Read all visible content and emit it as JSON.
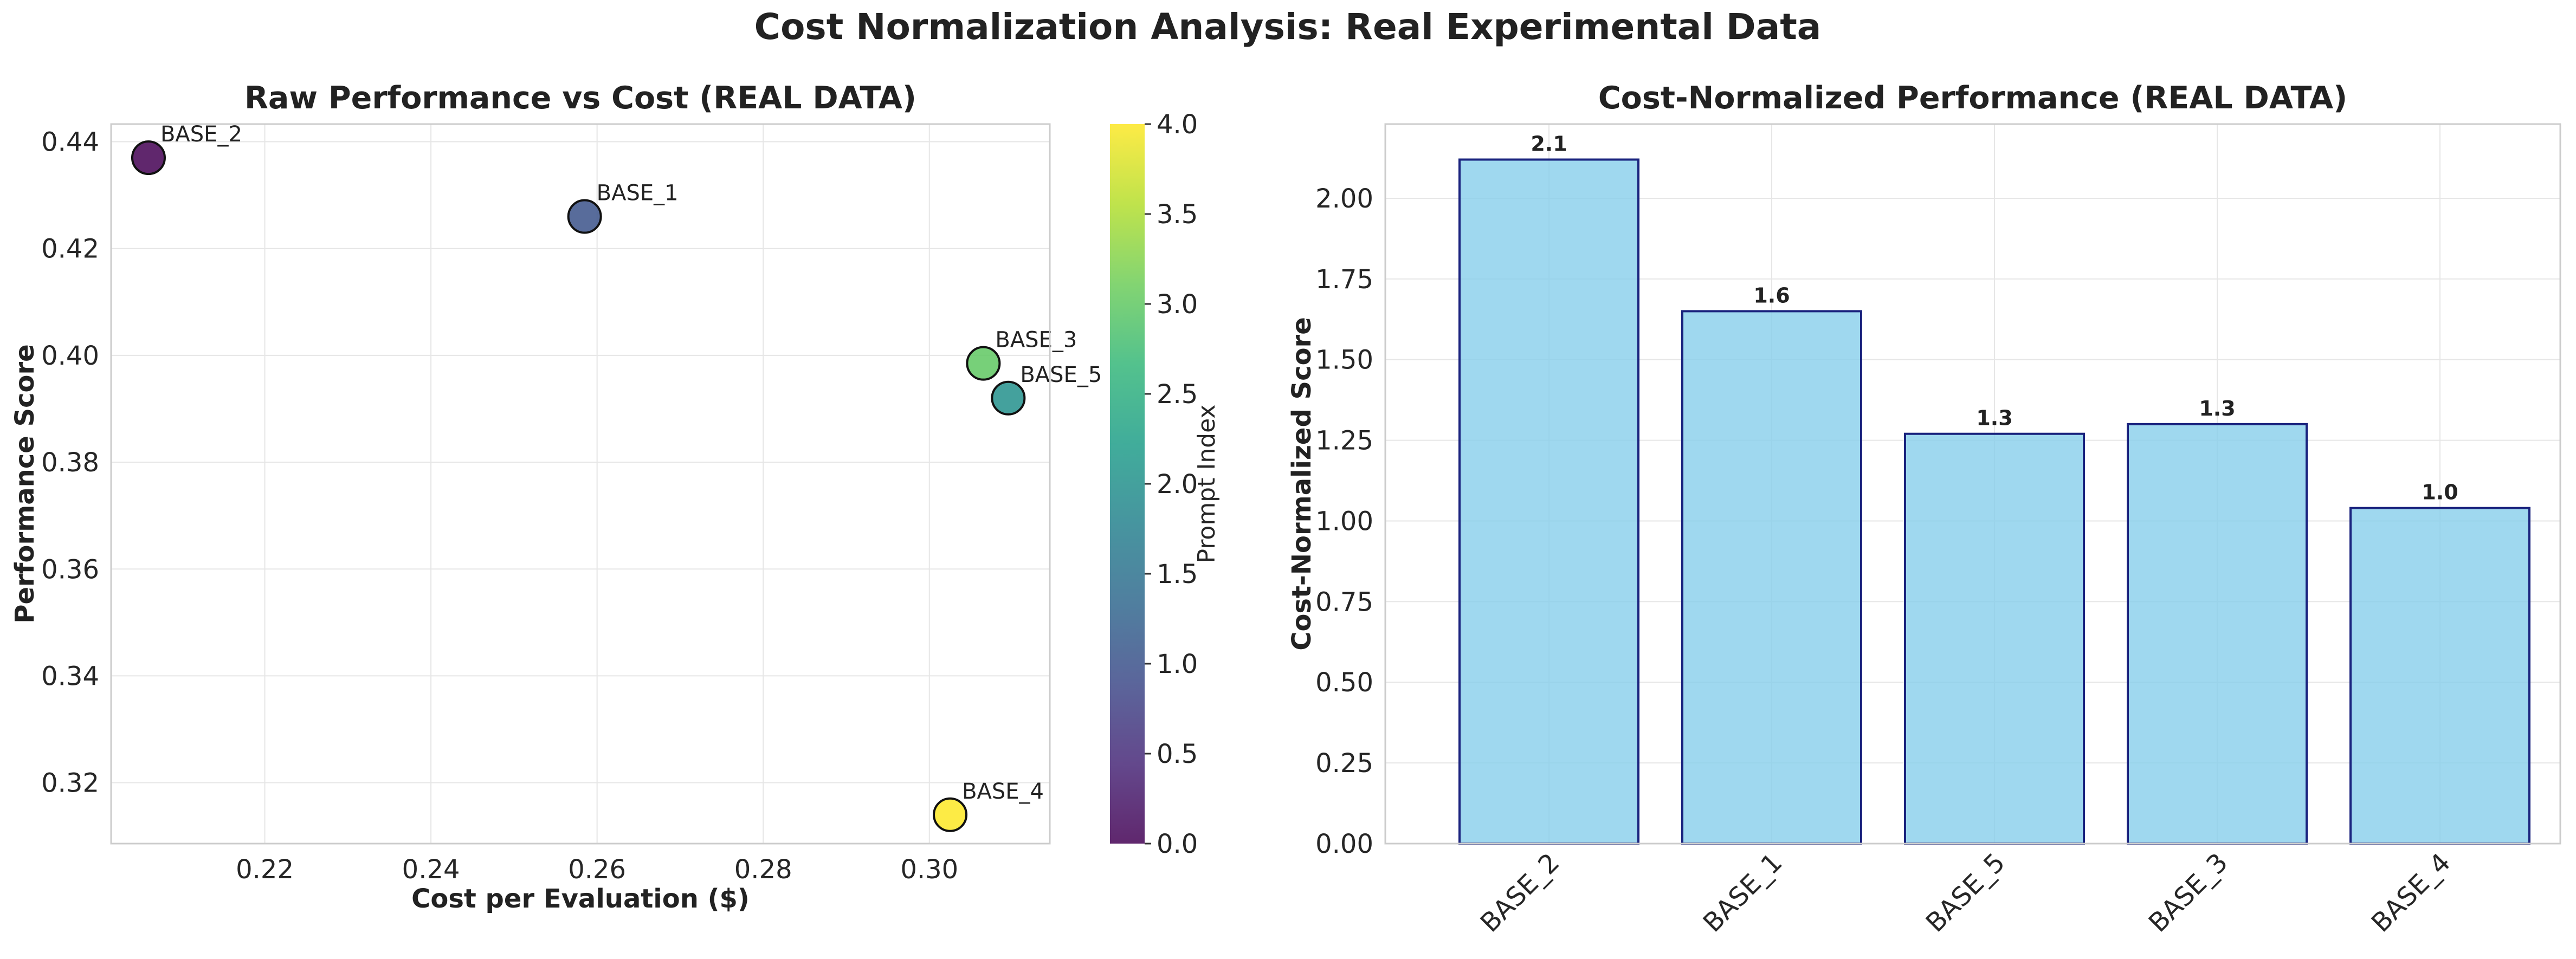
{
  "figure": {
    "suptitle": "Cost Normalization Analysis: Real Experimental Data"
  },
  "chart_data": [
    {
      "type": "scatter",
      "title": "Raw Performance vs Cost (REAL DATA)",
      "xlabel": "Cost per Evaluation ($)",
      "ylabel": "Performance Score",
      "xlim": [
        0.2015,
        0.3145
      ],
      "ylim": [
        0.3086,
        0.4433
      ],
      "xticks": [
        0.22,
        0.24,
        0.26,
        0.28,
        0.3
      ],
      "yticks": [
        0.32,
        0.34,
        0.36,
        0.38,
        0.4,
        0.42,
        0.44
      ],
      "grid": true,
      "points": [
        {
          "label": "BASE_2",
          "x": 0.206,
          "y": 0.437,
          "c": 0
        },
        {
          "label": "BASE_1",
          "x": 0.2585,
          "y": 0.426,
          "c": 1
        },
        {
          "label": "BASE_3",
          "x": 0.3065,
          "y": 0.3985,
          "c": 3
        },
        {
          "label": "BASE_5",
          "x": 0.3095,
          "y": 0.392,
          "c": 2
        },
        {
          "label": "BASE_4",
          "x": 0.3025,
          "y": 0.314,
          "c": 4
        }
      ],
      "colorbar": {
        "label": "Prompt Index",
        "colormap": "viridis",
        "range": [
          0.0,
          4.0
        ],
        "ticks": [
          "0.0",
          "0.5",
          "1.0",
          "1.5",
          "2.0",
          "2.5",
          "3.0",
          "3.5",
          "4.0"
        ]
      }
    },
    {
      "type": "bar",
      "title": "Cost-Normalized Performance (REAL DATA)",
      "xlabel": "",
      "ylabel": "Cost-Normalized Score",
      "categories": [
        "BASE_2",
        "BASE_1",
        "BASE_5",
        "BASE_3",
        "BASE_4"
      ],
      "values": [
        2.12,
        1.65,
        1.27,
        1.3,
        1.04
      ],
      "value_labels": [
        "2.1",
        "1.6",
        "1.3",
        "1.3",
        "1.0"
      ],
      "ylim": [
        0,
        2.23
      ],
      "yticks": [
        0.0,
        0.25,
        0.5,
        0.75,
        1.0,
        1.25,
        1.5,
        1.75,
        2.0
      ],
      "bar_color": "#87ceeb",
      "edge_color": "#1a237e",
      "grid": true
    }
  ]
}
